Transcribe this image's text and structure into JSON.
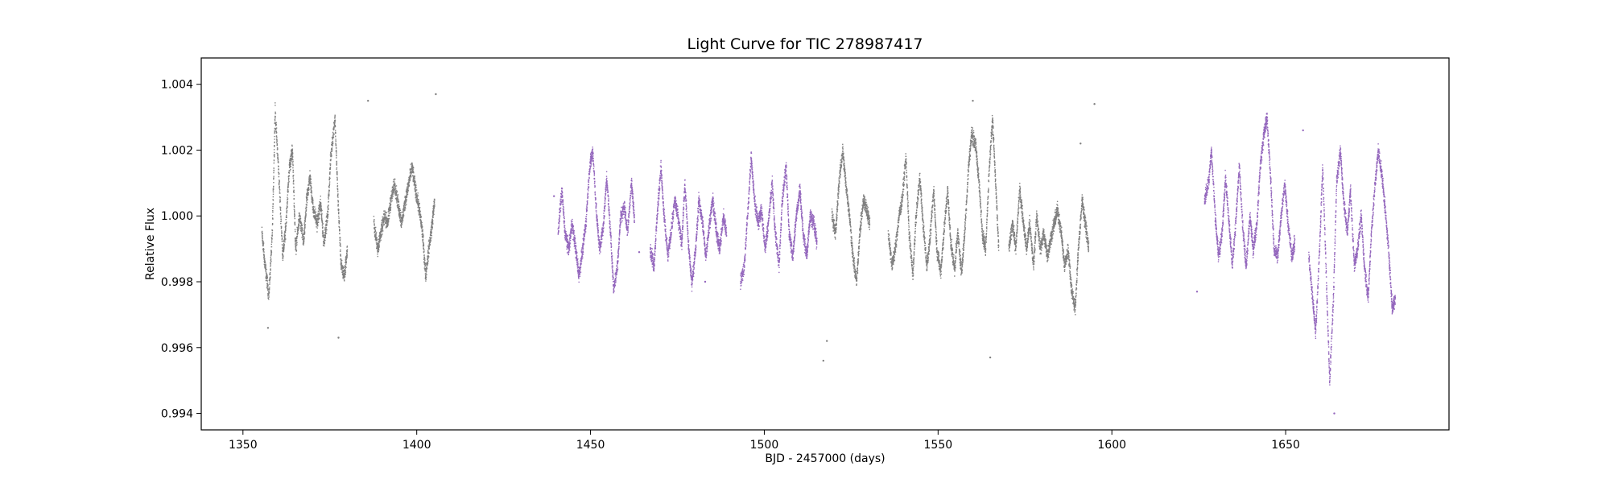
{
  "chart_data": {
    "type": "scatter",
    "title": "Light Curve for TIC 278987417",
    "xlabel": "BJD - 2457000 (days)",
    "ylabel": "Relative Flux",
    "xlim": [
      1338,
      1697
    ],
    "ylim": [
      0.9935,
      1.0048
    ],
    "xticks": [
      1350,
      1400,
      1450,
      1500,
      1550,
      1600,
      1650
    ],
    "yticks": [
      0.994,
      0.996,
      0.998,
      1.0,
      1.002,
      1.004
    ],
    "ytick_labels": [
      "0.994",
      "0.996",
      "0.998",
      "1.000",
      "1.002",
      "1.004"
    ],
    "grid": false,
    "legend": "none",
    "series": [
      {
        "color": "#7f7f7f",
        "segments": [
          {
            "x": [
              1355.3,
              1356.2,
              1357.3,
              1358.3,
              1359.1,
              1360.2,
              1361.3,
              1362.1,
              1363.2,
              1364.1,
              1365.0,
              1366.1,
              1367.3,
              1368.2,
              1369.1,
              1370.1,
              1371.2,
              1372.2,
              1373.1,
              1374.2,
              1375.1,
              1376.3,
              1377.2,
              1378.1,
              1379.0,
              1379.9
            ],
            "y": [
              0.9995,
              0.9985,
              0.9976,
              0.9995,
              1.0032,
              1.0012,
              0.9988,
              0.9996,
              1.0015,
              1.002,
              0.999,
              1.0,
              0.9992,
              1.0005,
              1.0012,
              1.0002,
              0.9998,
              1.0004,
              0.9992,
              1.0,
              1.0018,
              1.003,
              1.0005,
              0.9985,
              0.9982,
              0.999
            ]
          },
          {
            "x": [
              1387.5,
              1388.6,
              1389.5,
              1390.6,
              1391.5,
              1392.4,
              1393.5,
              1394.6,
              1395.5,
              1396.6,
              1397.5,
              1398.5,
              1399.5,
              1400.6,
              1401.5,
              1402.4,
              1403.3,
              1404.2,
              1405.0
            ],
            "y": [
              0.9998,
              0.999,
              0.9995,
              1.0,
              0.9998,
              1.0005,
              1.001,
              1.0003,
              0.9998,
              1.0005,
              1.001,
              1.0015,
              1.0008,
              1.0002,
              0.9995,
              0.9982,
              0.999,
              0.9997,
              1.0005
            ]
          },
          {
            "x": [
              1519.3,
              1520.4,
              1521.3,
              1522.4,
              1523.3,
              1524.4,
              1525.3,
              1526.4,
              1527.3,
              1528.4,
              1529.3,
              1530.2
            ],
            "y": [
              1.0,
              0.9995,
              1.001,
              1.002,
              1.001,
              1.0,
              0.9988,
              0.998,
              0.9995,
              1.0005,
              1.0002,
              0.9998
            ]
          },
          {
            "x": [
              1535.5,
              1536.6,
              1537.5,
              1538.6,
              1539.5,
              1540.6,
              1541.5,
              1542.6,
              1543.5,
              1544.6,
              1545.5,
              1546.6,
              1547.5,
              1548.6,
              1549.5,
              1550.6,
              1551.5,
              1552.6,
              1553.5,
              1554.6,
              1555.5,
              1556.6,
              1557.5,
              1558.6,
              1559.5,
              1560.6,
              1561.5,
              1562.6,
              1563.5,
              1564.6,
              1565.5,
              1566.4,
              1567.3
            ],
            "y": [
              0.9995,
              0.9985,
              0.999,
              1.0,
              1.0005,
              1.0018,
              0.9995,
              0.9982,
              1.0,
              1.0012,
              0.9998,
              0.9985,
              0.9993,
              1.0008,
              0.999,
              0.9983,
              0.9995,
              1.0008,
              0.9992,
              0.9984,
              0.9995,
              0.9983,
              0.9995,
              1.0015,
              1.0025,
              1.0022,
              1.0012,
              0.9995,
              0.999,
              1.0015,
              1.003,
              1.001,
              0.999
            ]
          },
          {
            "x": [
              1570.2,
              1571.3,
              1572.2,
              1573.3,
              1574.2,
              1575.3,
              1576.2,
              1577.3,
              1578.2,
              1579.3,
              1580.2,
              1581.3,
              1582.2,
              1583.3,
              1584.2,
              1585.3,
              1586.2,
              1587.3,
              1588.2,
              1589.3,
              1590.2,
              1591.3,
              1592.2,
              1593.2
            ],
            "y": [
              0.999,
              0.9998,
              0.999,
              1.0008,
              1.0,
              0.999,
              0.9998,
              0.9985,
              1.0,
              0.999,
              0.9995,
              0.9988,
              0.9993,
              0.9998,
              1.0002,
              0.9995,
              0.9985,
              0.999,
              0.9978,
              0.9972,
              0.999,
              1.0005,
              0.9998,
              0.999
            ]
          }
        ]
      },
      {
        "color": "#9467bd",
        "segments": [
          {
            "x": [
              1440.5,
              1441.6,
              1442.5,
              1443.6,
              1444.5,
              1445.6,
              1446.5,
              1447.6,
              1448.5,
              1449.6,
              1450.5,
              1451.6,
              1452.5,
              1453.6,
              1454.5,
              1455.6,
              1456.5,
              1457.6,
              1458.5,
              1459.6,
              1460.5,
              1461.6,
              1462.5
            ],
            "y": [
              0.9995,
              1.0008,
              0.9995,
              0.999,
              0.9998,
              0.999,
              0.9982,
              0.999,
              0.9998,
              1.0015,
              1.002,
              1.0,
              0.999,
              0.9998,
              1.0012,
              0.9995,
              0.9978,
              0.9985,
              1.0,
              1.0003,
              0.9995,
              1.001,
              1.0
            ]
          },
          {
            "x": [
              1467.0,
              1468.1,
              1469.0,
              1470.1,
              1471.0,
              1472.1,
              1473.0,
              1474.1,
              1475.0,
              1476.1,
              1477.0,
              1478.1,
              1479.0,
              1480.1,
              1481.0,
              1482.1,
              1483.0,
              1484.1,
              1485.0,
              1486.1,
              1487.0,
              1488.1,
              1489.0
            ],
            "y": [
              0.999,
              0.9985,
              1.0,
              1.0015,
              1.0,
              0.9988,
              0.9995,
              1.0005,
              1.0,
              0.9992,
              1.001,
              0.999,
              0.998,
              0.999,
              1.0005,
              0.9998,
              0.9988,
              0.9998,
              1.0005,
              0.9995,
              0.999,
              1.0,
              0.9995
            ]
          },
          {
            "x": [
              1493.0,
              1494.1,
              1495.0,
              1496.1,
              1497.0,
              1498.1,
              1499.0,
              1500.1,
              1501.0,
              1502.1,
              1503.0,
              1504.1,
              1505.0,
              1506.1,
              1507.0,
              1508.1,
              1509.0,
              1510.1,
              1511.0,
              1512.1,
              1513.0,
              1514.1,
              1515.0
            ],
            "y": [
              0.998,
              0.9985,
              1.0,
              1.0018,
              1.0005,
              0.9998,
              1.0002,
              0.999,
              0.9998,
              1.001,
              0.9995,
              0.9985,
              1.0005,
              1.0015,
              0.9995,
              0.9988,
              1.0,
              1.0008,
              0.9995,
              0.9988,
              1.0,
              0.9998,
              0.9992
            ]
          },
          {
            "x": [
              1626.5,
              1627.6,
              1628.5,
              1629.6,
              1630.5,
              1631.6,
              1632.5,
              1633.6,
              1634.5,
              1635.6,
              1636.5,
              1637.6,
              1638.5,
              1639.6,
              1640.5,
              1641.6,
              1642.5,
              1643.6,
              1644.5,
              1645.6,
              1646.5,
              1647.6,
              1648.5,
              1649.6,
              1650.5,
              1651.6,
              1652.5
            ],
            "y": [
              1.0005,
              1.001,
              1.002,
              1.0,
              0.9988,
              0.9995,
              1.0012,
              0.9998,
              0.9985,
              1.0,
              1.0015,
              0.9995,
              0.9985,
              1.0,
              0.999,
              0.9998,
              1.0015,
              1.0025,
              1.003,
              1.001,
              0.999,
              0.9988,
              1.0,
              1.001,
              0.9998,
              0.9988,
              0.9992
            ]
          },
          {
            "x": [
              1656.5,
              1657.6,
              1658.5,
              1659.6,
              1660.5,
              1661.6,
              1662.5,
              1663.6,
              1664.5,
              1665.6,
              1666.5,
              1667.6,
              1668.5,
              1669.6,
              1670.5,
              1671.6,
              1672.5,
              1673.6,
              1674.5,
              1675.6,
              1676.5,
              1677.6,
              1678.5,
              1679.6,
              1680.5,
              1681.4
            ],
            "y": [
              0.9988,
              0.9975,
              0.9965,
              0.999,
              1.0015,
              0.998,
              0.995,
              0.9975,
              1.001,
              1.002,
              1.0005,
              0.9995,
              1.0008,
              0.9985,
              0.999,
              1.0,
              0.9985,
              0.9975,
              0.9995,
              1.001,
              1.002,
              1.0012,
              1.0002,
              0.9988,
              0.9972,
              0.9975
            ]
          }
        ]
      }
    ],
    "outliers": [
      {
        "color": "#7f7f7f",
        "x": [
          1357.2,
          1386.0,
          1405.5,
          1377.5,
          1517.0,
          1595.0,
          1560.0,
          1518.0,
          1591.0,
          1565.0
        ],
        "y": [
          0.9966,
          1.0035,
          1.0037,
          0.9963,
          0.9956,
          1.0034,
          1.0035,
          0.9962,
          1.0022,
          0.9957
        ]
      },
      {
        "color": "#9467bd",
        "x": [
          1439.5,
          1464.0,
          1483.0,
          1624.5,
          1664.0,
          1655.0
        ],
        "y": [
          1.0006,
          0.9989,
          0.998,
          0.9977,
          0.994,
          1.0026
        ]
      }
    ]
  }
}
